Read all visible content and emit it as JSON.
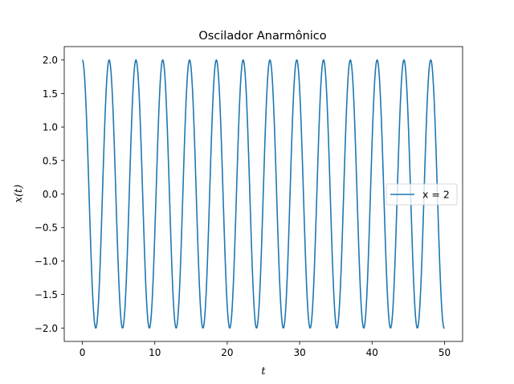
{
  "chart_data": {
    "type": "line",
    "title": "Oscilador Anarmônico",
    "xlabel": "t",
    "ylabel": "x(t)",
    "xlim": [
      -2.5,
      52.5
    ],
    "ylim": [
      -2.2,
      2.2
    ],
    "xticks": [
      0,
      10,
      20,
      30,
      40,
      50
    ],
    "yticks": [
      -2.0,
      -1.5,
      -1.0,
      -0.5,
      0.0,
      0.5,
      1.0,
      1.5,
      2.0
    ],
    "xtick_labels": [
      "0",
      "10",
      "20",
      "30",
      "40",
      "50"
    ],
    "ytick_labels": [
      "−2.0",
      "−1.5",
      "−1.0",
      "−0.5",
      "0.0",
      "0.5",
      "1.0",
      "1.5",
      "2.0"
    ],
    "grid": false,
    "legend_position": "center-right",
    "series": [
      {
        "name": "x = 2",
        "color": "#1f77b4",
        "x_range": [
          0,
          50
        ],
        "amplitude": 2.0,
        "period": 3.7,
        "initial_value": 2.0,
        "final_value": -1.97
      }
    ]
  }
}
